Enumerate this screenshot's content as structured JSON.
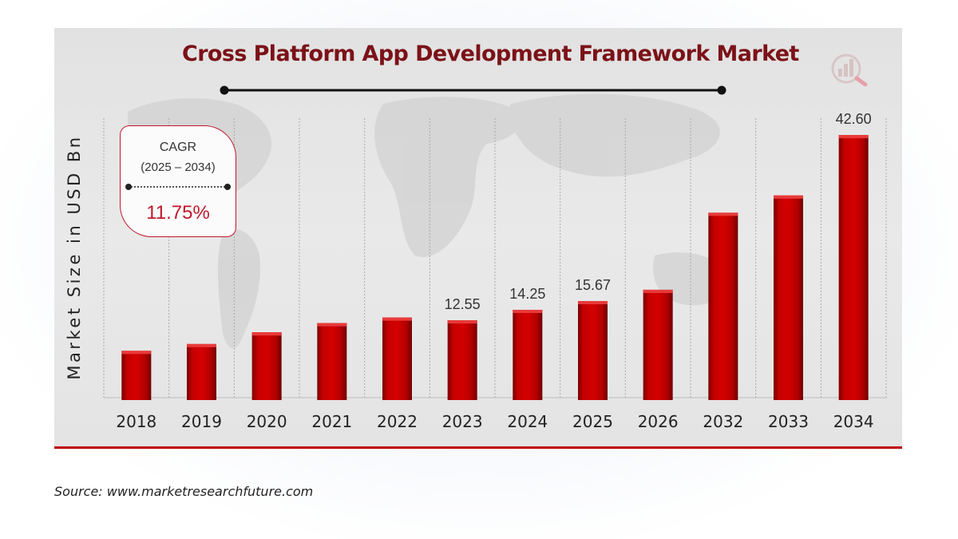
{
  "chart_data": {
    "type": "bar",
    "title": "Cross Platform App Development Framework Market",
    "xlabel": "",
    "ylabel": "Market Size in USD Bn",
    "categories": [
      "2018",
      "2019",
      "2020",
      "2021",
      "2022",
      "2023",
      "2024",
      "2025",
      "2026",
      "2032",
      "2033",
      "2034"
    ],
    "values": [
      7.6,
      8.7,
      10.6,
      12.1,
      13.0,
      12.55,
      14.25,
      15.67,
      17.5,
      30.0,
      32.8,
      42.6
    ],
    "data_labels": [
      "",
      "",
      "",
      "",
      "",
      "12.55",
      "14.25",
      "15.67",
      "",
      "",
      "",
      "42.60"
    ],
    "ylim": [
      0,
      50
    ],
    "grid": "vertical",
    "bar_color": "#c00000"
  },
  "cagr": {
    "label": "CAGR",
    "range": "(2025 – 2034)",
    "value": "11.75%"
  },
  "source": "Source: www.marketresearchfuture.com",
  "logo": "mrfr-logo-icon"
}
